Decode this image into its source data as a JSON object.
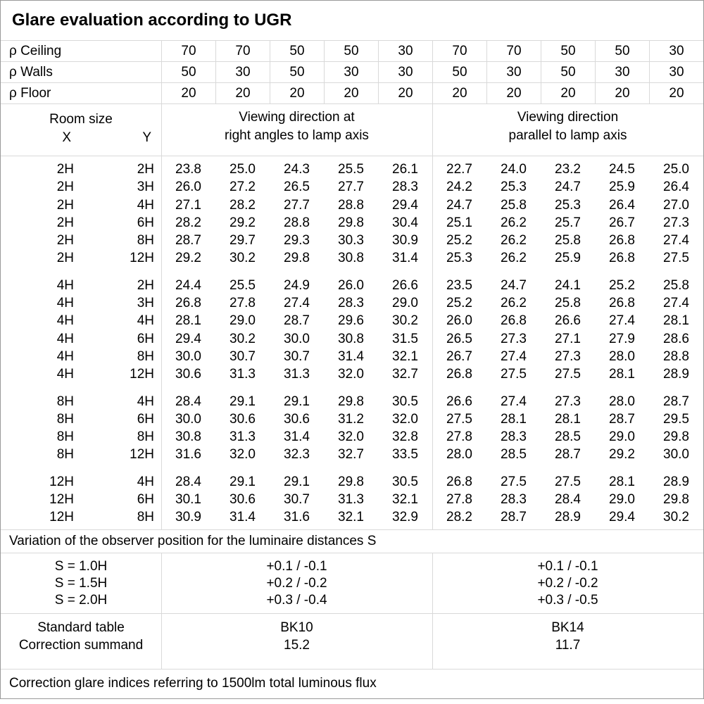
{
  "chart_data": {
    "type": "table",
    "title": "Glare evaluation according to UGR",
    "reflectance_header": {
      "rows": [
        {
          "label": "ρ Ceiling",
          "values": [
            "70",
            "70",
            "50",
            "50",
            "30",
            "70",
            "70",
            "50",
            "50",
            "30"
          ]
        },
        {
          "label": "ρ Walls",
          "values": [
            "50",
            "30",
            "50",
            "30",
            "30",
            "50",
            "30",
            "50",
            "30",
            "30"
          ]
        },
        {
          "label": "ρ Floor",
          "values": [
            "20",
            "20",
            "20",
            "20",
            "20",
            "20",
            "20",
            "20",
            "20",
            "20"
          ]
        }
      ]
    },
    "room_size": {
      "label": "Room size",
      "x": "X",
      "y": "Y"
    },
    "column_groups": {
      "left": {
        "line1": "Viewing direction at",
        "line2": "right angles to lamp axis"
      },
      "right": {
        "line1": "Viewing direction",
        "line2": "parallel to lamp axis"
      }
    },
    "ugr_groups": [
      {
        "name": "2H",
        "rows": [
          {
            "x": "2H",
            "y": "2H",
            "values": [
              "23.8",
              "25.0",
              "24.3",
              "25.5",
              "26.1",
              "22.7",
              "24.0",
              "23.2",
              "24.5",
              "25.0"
            ]
          },
          {
            "x": "2H",
            "y": "3H",
            "values": [
              "26.0",
              "27.2",
              "26.5",
              "27.7",
              "28.3",
              "24.2",
              "25.3",
              "24.7",
              "25.9",
              "26.4"
            ]
          },
          {
            "x": "2H",
            "y": "4H",
            "values": [
              "27.1",
              "28.2",
              "27.7",
              "28.8",
              "29.4",
              "24.7",
              "25.8",
              "25.3",
              "26.4",
              "27.0"
            ]
          },
          {
            "x": "2H",
            "y": "6H",
            "values": [
              "28.2",
              "29.2",
              "28.8",
              "29.8",
              "30.4",
              "25.1",
              "26.2",
              "25.7",
              "26.7",
              "27.3"
            ]
          },
          {
            "x": "2H",
            "y": "8H",
            "values": [
              "28.7",
              "29.7",
              "29.3",
              "30.3",
              "30.9",
              "25.2",
              "26.2",
              "25.8",
              "26.8",
              "27.4"
            ]
          },
          {
            "x": "2H",
            "y": "12H",
            "values": [
              "29.2",
              "30.2",
              "29.8",
              "30.8",
              "31.4",
              "25.3",
              "26.2",
              "25.9",
              "26.8",
              "27.5"
            ]
          }
        ]
      },
      {
        "name": "4H",
        "rows": [
          {
            "x": "4H",
            "y": "2H",
            "values": [
              "24.4",
              "25.5",
              "24.9",
              "26.0",
              "26.6",
              "23.5",
              "24.7",
              "24.1",
              "25.2",
              "25.8"
            ]
          },
          {
            "x": "4H",
            "y": "3H",
            "values": [
              "26.8",
              "27.8",
              "27.4",
              "28.3",
              "29.0",
              "25.2",
              "26.2",
              "25.8",
              "26.8",
              "27.4"
            ]
          },
          {
            "x": "4H",
            "y": "4H",
            "values": [
              "28.1",
              "29.0",
              "28.7",
              "29.6",
              "30.2",
              "26.0",
              "26.8",
              "26.6",
              "27.4",
              "28.1"
            ]
          },
          {
            "x": "4H",
            "y": "6H",
            "values": [
              "29.4",
              "30.2",
              "30.0",
              "30.8",
              "31.5",
              "26.5",
              "27.3",
              "27.1",
              "27.9",
              "28.6"
            ]
          },
          {
            "x": "4H",
            "y": "8H",
            "values": [
              "30.0",
              "30.7",
              "30.7",
              "31.4",
              "32.1",
              "26.7",
              "27.4",
              "27.3",
              "28.0",
              "28.8"
            ]
          },
          {
            "x": "4H",
            "y": "12H",
            "values": [
              "30.6",
              "31.3",
              "31.3",
              "32.0",
              "32.7",
              "26.8",
              "27.5",
              "27.5",
              "28.1",
              "28.9"
            ]
          }
        ]
      },
      {
        "name": "8H",
        "rows": [
          {
            "x": "8H",
            "y": "4H",
            "values": [
              "28.4",
              "29.1",
              "29.1",
              "29.8",
              "30.5",
              "26.6",
              "27.4",
              "27.3",
              "28.0",
              "28.7"
            ]
          },
          {
            "x": "8H",
            "y": "6H",
            "values": [
              "30.0",
              "30.6",
              "30.6",
              "31.2",
              "32.0",
              "27.5",
              "28.1",
              "28.1",
              "28.7",
              "29.5"
            ]
          },
          {
            "x": "8H",
            "y": "8H",
            "values": [
              "30.8",
              "31.3",
              "31.4",
              "32.0",
              "32.8",
              "27.8",
              "28.3",
              "28.5",
              "29.0",
              "29.8"
            ]
          },
          {
            "x": "8H",
            "y": "12H",
            "values": [
              "31.6",
              "32.0",
              "32.3",
              "32.7",
              "33.5",
              "28.0",
              "28.5",
              "28.7",
              "29.2",
              "30.0"
            ]
          }
        ]
      },
      {
        "name": "12H",
        "rows": [
          {
            "x": "12H",
            "y": "4H",
            "values": [
              "28.4",
              "29.1",
              "29.1",
              "29.8",
              "30.5",
              "26.8",
              "27.5",
              "27.5",
              "28.1",
              "28.9"
            ]
          },
          {
            "x": "12H",
            "y": "6H",
            "values": [
              "30.1",
              "30.6",
              "30.7",
              "31.3",
              "32.1",
              "27.8",
              "28.3",
              "28.4",
              "29.0",
              "29.8"
            ]
          },
          {
            "x": "12H",
            "y": "8H",
            "values": [
              "30.9",
              "31.4",
              "31.6",
              "32.1",
              "32.9",
              "28.2",
              "28.7",
              "28.9",
              "29.4",
              "30.2"
            ]
          }
        ]
      }
    ],
    "variation_note": "Variation of the observer position for the luminaire distances S",
    "observer_variation": [
      {
        "label": "S = 1.0H",
        "left": "+0.1 / -0.1",
        "right": "+0.1 / -0.1"
      },
      {
        "label": "S = 1.5H",
        "left": "+0.2 / -0.2",
        "right": "+0.2 / -0.2"
      },
      {
        "label": "S = 2.0H",
        "left": "+0.3 / -0.4",
        "right": "+0.3 / -0.5"
      }
    ],
    "summary": {
      "row_labels": [
        "Standard table",
        "Correction summand"
      ],
      "left": {
        "standard_table": "BK10",
        "correction_summand": "15.2"
      },
      "right": {
        "standard_table": "BK14",
        "correction_summand": "11.7"
      }
    },
    "footer_note": "Correction glare indices referring to 1500lm total luminous flux"
  },
  "colors": {
    "background": "#ffffff",
    "text": "#000000",
    "grid_line": "#d9d9d9",
    "outer_border": "#999999"
  }
}
